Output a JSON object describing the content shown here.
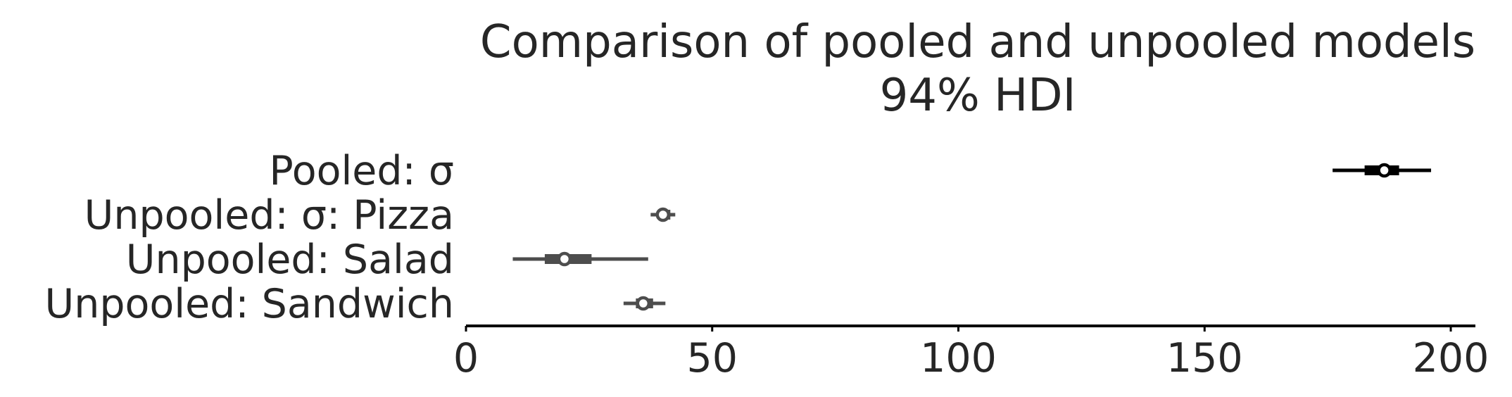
{
  "chart_data": {
    "type": "forest",
    "title": "Comparison of pooled and unpooled models",
    "subtitle": "94% HDI",
    "xlim": [
      0,
      205
    ],
    "xticks": [
      0,
      50,
      100,
      150,
      200
    ],
    "xtick_labels": [
      "0",
      "50",
      "100",
      "150",
      "200"
    ],
    "grid": false,
    "series": [
      {
        "label": "Pooled: σ",
        "point": 186.5,
        "hdi_50": [
          182.5,
          189.5
        ],
        "hdi_94": [
          176,
          196
        ],
        "color": "#000000"
      },
      {
        "label": "Unpooled: σ: Pizza",
        "point": 40,
        "hdi_50": [
          39,
          41.5
        ],
        "hdi_94": [
          37.5,
          42.5
        ],
        "color": "#4d4d4d"
      },
      {
        "label": "Unpooled:  Salad",
        "point": 20,
        "hdi_50": [
          16,
          25.5
        ],
        "hdi_94": [
          9.5,
          37
        ],
        "color": "#4d4d4d"
      },
      {
        "label": "Unpooled:  Sandwich",
        "point": 36,
        "hdi_50": [
          34.5,
          38
        ],
        "hdi_94": [
          32,
          40.5
        ],
        "color": "#4d4d4d"
      }
    ]
  }
}
